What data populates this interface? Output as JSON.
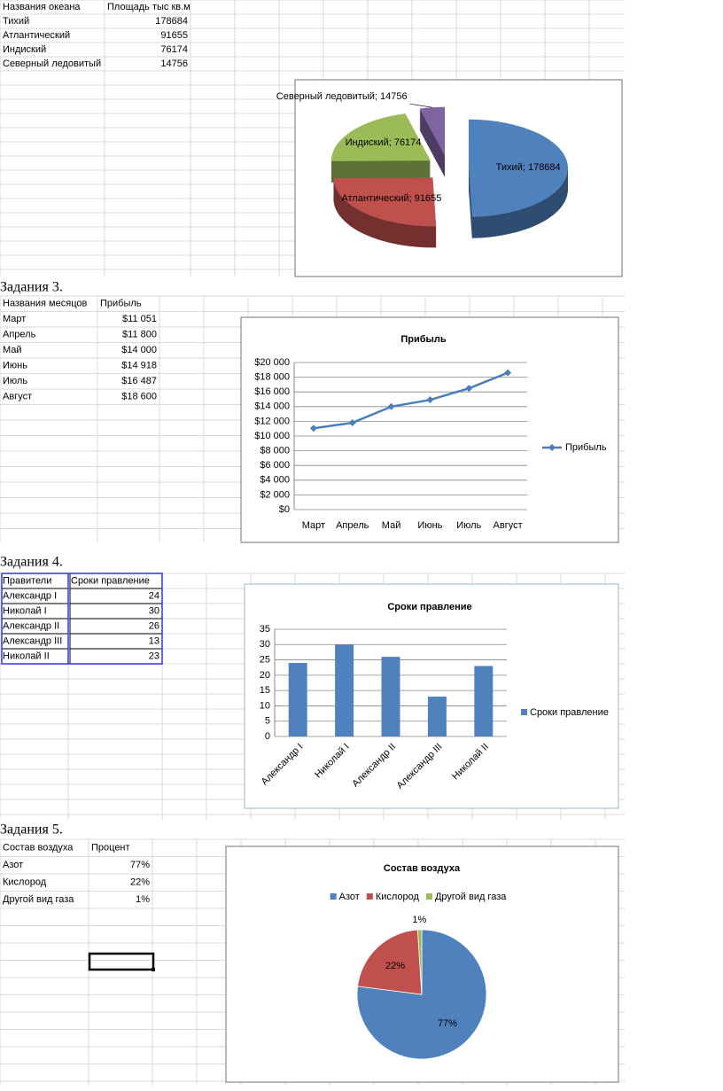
{
  "sections": [
    {
      "table": {
        "header": [
          "Названия океана",
          "Площадь  тыс кв.м"
        ],
        "rows": [
          [
            "Тихий",
            "178684"
          ],
          [
            "Атлантический",
            "91655"
          ],
          [
            "Индиский",
            "76174"
          ],
          [
            "Северный ледовитый",
            "14756"
          ]
        ]
      }
    },
    {
      "heading": "Задания 3.",
      "table": {
        "header": [
          "Названия месяцов",
          "Прибыль"
        ],
        "rows": [
          [
            "Март",
            "$11 051"
          ],
          [
            "Апрель",
            "$11 800"
          ],
          [
            "Май",
            "$14 000"
          ],
          [
            "Июнь",
            "$14 918"
          ],
          [
            "Июль",
            "$16 487"
          ],
          [
            "Август",
            "$18 600"
          ]
        ]
      }
    },
    {
      "heading": "Задания 4.",
      "table": {
        "header": [
          "Правители",
          "Сроки правление"
        ],
        "rows": [
          [
            "Александр I",
            "24"
          ],
          [
            "Николай I",
            "30"
          ],
          [
            "Александр II",
            "26"
          ],
          [
            "Александр III",
            "13"
          ],
          [
            "Николай II",
            "23"
          ]
        ]
      }
    },
    {
      "heading": "Задания 5.",
      "table": {
        "header": [
          "Состав воздуха",
          "Процент"
        ],
        "rows": [
          [
            "Азот",
            "77%"
          ],
          [
            "Кислород",
            "22%"
          ],
          [
            "Другой вид газа",
            "1%"
          ]
        ]
      }
    }
  ],
  "chart_data": [
    {
      "type": "pie",
      "three_d": true,
      "exploded": true,
      "values": [
        178684,
        91655,
        76174,
        14756
      ],
      "value_labels": [
        "Тихий; 178684",
        "Атлантический; 91655",
        "Индиский; 76174",
        "Северный ледовитый; 14756"
      ],
      "colors": [
        "#4f81bd",
        "#c0504d",
        "#9bbb59",
        "#8064a2"
      ]
    },
    {
      "type": "line",
      "title": "Прибыль",
      "categories": [
        "Март",
        "Апрель",
        "Май",
        "Июнь",
        "Июль",
        "Август"
      ],
      "series": [
        {
          "name": "Прибыль",
          "color": "#4a7ebb",
          "values": [
            11051,
            11800,
            14000,
            14918,
            16487,
            18600
          ]
        }
      ],
      "ylim": [
        0,
        20000
      ],
      "yticks": [
        {
          "value": 0,
          "label": "$0"
        },
        {
          "value": 2000,
          "label": "$2 000"
        },
        {
          "value": 4000,
          "label": "$4 000"
        },
        {
          "value": 6000,
          "label": "$6 000"
        },
        {
          "value": 8000,
          "label": "$8 000"
        },
        {
          "value": 10000,
          "label": "$10 000"
        },
        {
          "value": 12000,
          "label": "$12 000"
        },
        {
          "value": 14000,
          "label": "$14 000"
        },
        {
          "value": 16000,
          "label": "$16 000"
        },
        {
          "value": 18000,
          "label": "$18 000"
        },
        {
          "value": 20000,
          "label": "$20 000"
        }
      ],
      "grid": true,
      "legend": "right"
    },
    {
      "type": "bar",
      "title": "Сроки правление",
      "categories": [
        "Александр I",
        "Николай I",
        "Александр II",
        "Александр III",
        "Николай II"
      ],
      "series": [
        {
          "name": "Сроки правление",
          "color": "#4f81bd",
          "values": [
            24,
            30,
            26,
            13,
            23
          ]
        }
      ],
      "ylim": [
        0,
        35
      ],
      "yticks": [
        0,
        5,
        10,
        15,
        20,
        25,
        30,
        35
      ],
      "grid": true,
      "legend": "right"
    },
    {
      "type": "pie",
      "title": "Состав воздуха",
      "categories": [
        "Азот",
        "Кислород",
        "Другой вид газа"
      ],
      "values": [
        77,
        22,
        1
      ],
      "value_labels": [
        "77%",
        "22%",
        "1%"
      ],
      "colors": [
        "#4f81bd",
        "#c0504d",
        "#9bbb59"
      ],
      "legend": "top"
    }
  ]
}
